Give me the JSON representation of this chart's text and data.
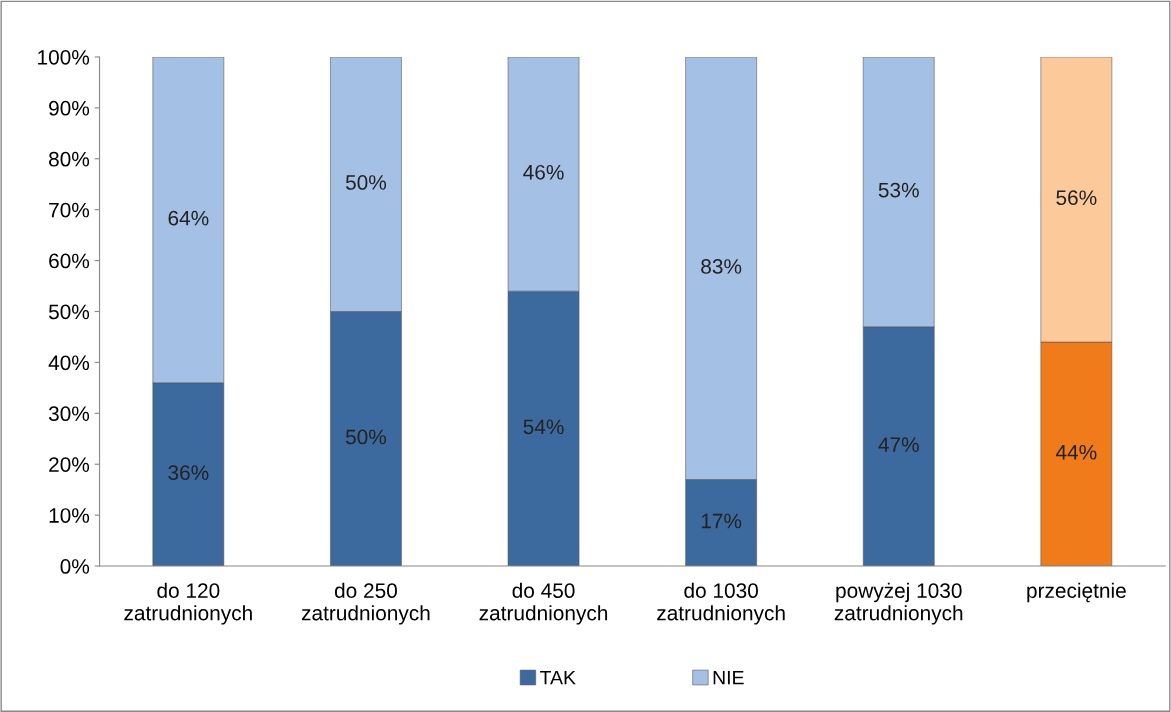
{
  "chart_data": {
    "type": "bar",
    "stacked": true,
    "categories": [
      "do 120\nzatrudnionych",
      "do 250\nzatrudnionych",
      "do 450\nzatrudnionych",
      "do 1030\nzatrudnionych",
      "powyżej 1030\nzatrudnionych",
      "przeciętnie"
    ],
    "series": [
      {
        "name": "TAK",
        "color": "#3d6a9e",
        "colors": [
          "#3d6a9e",
          "#3d6a9e",
          "#3d6a9e",
          "#3d6a9e",
          "#3d6a9e",
          "#f07b1a"
        ],
        "values": [
          36,
          50,
          54,
          17,
          47,
          44
        ],
        "value_labels": [
          "36%",
          "50%",
          "54%",
          "17%",
          "47%",
          "44%"
        ]
      },
      {
        "name": "NIE",
        "color": "#a4c0e4",
        "colors": [
          "#a4c0e4",
          "#a4c0e4",
          "#a4c0e4",
          "#a4c0e4",
          "#a4c0e4",
          "#fcc99a"
        ],
        "values": [
          64,
          50,
          46,
          83,
          53,
          56
        ],
        "value_labels": [
          "64%",
          "50%",
          "46%",
          "83%",
          "53%",
          "56%"
        ]
      }
    ],
    "ylim": [
      0,
      100
    ],
    "yticks": [
      {
        "value": 0,
        "label": "0%"
      },
      {
        "value": 10,
        "label": "10%"
      },
      {
        "value": 20,
        "label": "20%"
      },
      {
        "value": 30,
        "label": "30%"
      },
      {
        "value": 40,
        "label": "40%"
      },
      {
        "value": 50,
        "label": "50%"
      },
      {
        "value": 60,
        "label": "60%"
      },
      {
        "value": 70,
        "label": "70%"
      },
      {
        "value": 80,
        "label": "80%"
      },
      {
        "value": 90,
        "label": "90%"
      },
      {
        "value": 100,
        "label": "100%"
      }
    ],
    "grid": false,
    "legend": "bottom"
  }
}
